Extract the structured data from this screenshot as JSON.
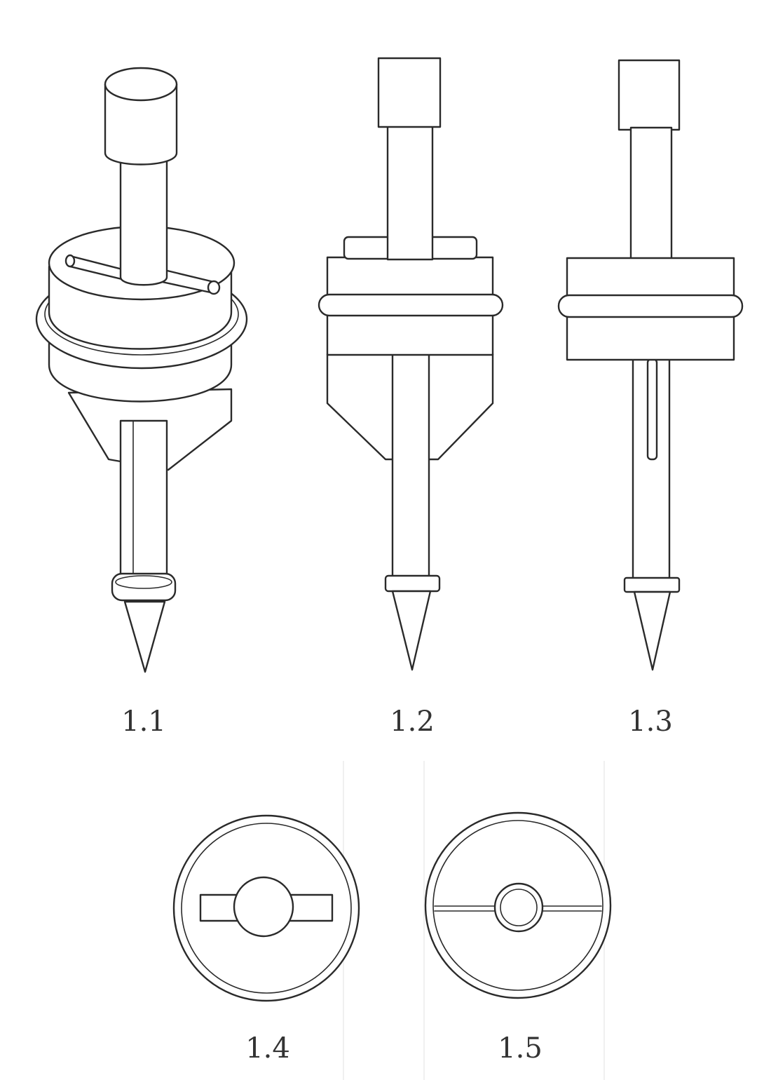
{
  "figure": {
    "labels": {
      "f11": "1.1",
      "f12": "1.2",
      "f13": "1.3",
      "f14": "1.4",
      "f15": "1.5"
    }
  }
}
